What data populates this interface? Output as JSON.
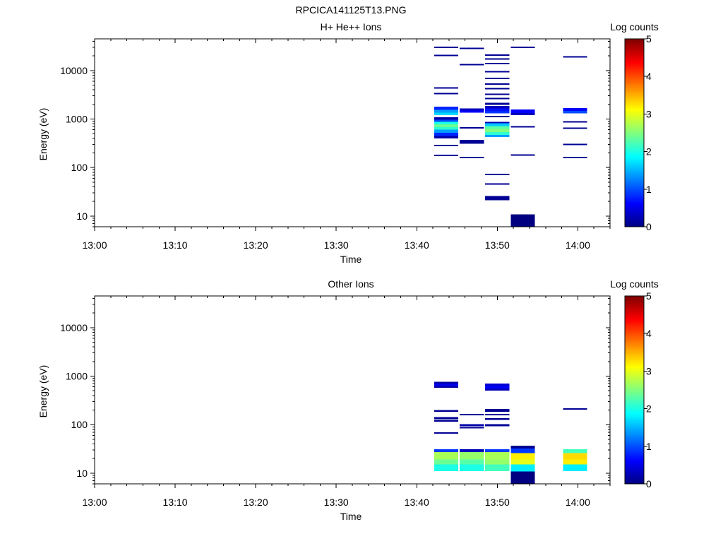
{
  "figure_title": "RPCICA141125T13.PNG",
  "chart_data": [
    {
      "type": "heatmap",
      "title": "H+ He++ Ions",
      "xlabel": "Time",
      "ylabel": "Energy (eV)",
      "x_ticks": [
        "13:00",
        "13:10",
        "13:20",
        "13:30",
        "13:40",
        "13:50",
        "14:00"
      ],
      "x_range_minutes_after_1300": [
        0,
        64
      ],
      "y_scale": "log",
      "y_ticks": [
        "10",
        "100",
        "1000",
        "10000"
      ],
      "y_range": [
        6,
        45000
      ],
      "colorbar": {
        "label": "Log counts",
        "range": [
          0,
          5
        ],
        "ticks": [
          "0",
          "1",
          "2",
          "3",
          "4",
          "5"
        ]
      },
      "time_bins": [
        {
          "start": "13:42:10",
          "end": "13:45:10",
          "cells": [
            {
              "e_lo": 175,
              "e_hi": 182,
              "log_counts": 0.1
            },
            {
              "e_lo": 280,
              "e_hi": 292,
              "log_counts": 0.1
            },
            {
              "e_lo": 400,
              "e_hi": 445,
              "log_counts": 0.2
            },
            {
              "e_lo": 445,
              "e_hi": 520,
              "log_counts": 0.8
            },
            {
              "e_lo": 520,
              "e_hi": 600,
              "log_counts": 1.4
            },
            {
              "e_lo": 600,
              "e_hi": 680,
              "log_counts": 2.1
            },
            {
              "e_lo": 680,
              "e_hi": 780,
              "log_counts": 2.4
            },
            {
              "e_lo": 780,
              "e_hi": 880,
              "log_counts": 2.0
            },
            {
              "e_lo": 880,
              "e_hi": 960,
              "log_counts": 1.0
            },
            {
              "e_lo": 960,
              "e_hi": 1080,
              "log_counts": 0.2
            },
            {
              "e_lo": 1200,
              "e_hi": 1350,
              "log_counts": 1.7
            },
            {
              "e_lo": 1350,
              "e_hi": 1550,
              "log_counts": 1.4
            },
            {
              "e_lo": 1550,
              "e_hi": 1800,
              "log_counts": 0.8
            },
            {
              "e_lo": 3250,
              "e_hi": 3400,
              "log_counts": 0.1
            },
            {
              "e_lo": 4250,
              "e_hi": 4450,
              "log_counts": 0.1
            },
            {
              "e_lo": 20000,
              "e_hi": 21200,
              "log_counts": 0.1
            },
            {
              "e_lo": 29500,
              "e_hi": 31000,
              "log_counts": 0.1
            }
          ]
        },
        {
          "start": "13:45:20",
          "end": "13:48:20",
          "cells": [
            {
              "e_lo": 158,
              "e_hi": 166,
              "log_counts": 0.1
            },
            {
              "e_lo": 310,
              "e_hi": 370,
              "log_counts": 0.1
            },
            {
              "e_lo": 640,
              "e_hi": 670,
              "log_counts": 0.1
            },
            {
              "e_lo": 1350,
              "e_hi": 1500,
              "log_counts": 0.6
            },
            {
              "e_lo": 1500,
              "e_hi": 1650,
              "log_counts": 0.3
            },
            {
              "e_lo": 12800,
              "e_hi": 13600,
              "log_counts": 0.1
            },
            {
              "e_lo": 28000,
              "e_hi": 29500,
              "log_counts": 0.1
            }
          ]
        },
        {
          "start": "13:48:30",
          "end": "13:51:30",
          "cells": [
            {
              "e_lo": 21,
              "e_hi": 26,
              "log_counts": 0.1
            },
            {
              "e_lo": 44,
              "e_hi": 47,
              "log_counts": 0.1
            },
            {
              "e_lo": 70,
              "e_hi": 73,
              "log_counts": 0.1
            },
            {
              "e_lo": 425,
              "e_hi": 470,
              "log_counts": 1.4
            },
            {
              "e_lo": 470,
              "e_hi": 540,
              "log_counts": 2.1
            },
            {
              "e_lo": 540,
              "e_hi": 620,
              "log_counts": 2.5
            },
            {
              "e_lo": 620,
              "e_hi": 720,
              "log_counts": 2.3
            },
            {
              "e_lo": 720,
              "e_hi": 820,
              "log_counts": 1.6
            },
            {
              "e_lo": 820,
              "e_hi": 880,
              "log_counts": 0.3
            },
            {
              "e_lo": 1100,
              "e_hi": 1160,
              "log_counts": 0.1
            },
            {
              "e_lo": 1300,
              "e_hi": 1450,
              "log_counts": 0.9
            },
            {
              "e_lo": 1450,
              "e_hi": 1650,
              "log_counts": 0.7
            },
            {
              "e_lo": 1650,
              "e_hi": 1850,
              "log_counts": 0.3
            },
            {
              "e_lo": 1950,
              "e_hi": 2150,
              "log_counts": 0.1
            },
            {
              "e_lo": 2550,
              "e_hi": 2700,
              "log_counts": 0.1
            },
            {
              "e_lo": 3150,
              "e_hi": 3300,
              "log_counts": 0.1
            },
            {
              "e_lo": 4100,
              "e_hi": 4300,
              "log_counts": 0.1
            },
            {
              "e_lo": 5150,
              "e_hi": 5400,
              "log_counts": 0.1
            },
            {
              "e_lo": 6700,
              "e_hi": 7000,
              "log_counts": 0.1
            },
            {
              "e_lo": 9200,
              "e_hi": 9700,
              "log_counts": 0.1
            },
            {
              "e_lo": 13500,
              "e_hi": 14500,
              "log_counts": 0.1
            },
            {
              "e_lo": 16800,
              "e_hi": 17800,
              "log_counts": 0.1
            },
            {
              "e_lo": 20000,
              "e_hi": 21500,
              "log_counts": 0.1
            }
          ]
        },
        {
          "start": "13:51:40",
          "end": "13:54:40",
          "cells": [
            {
              "e_lo": 6,
              "e_hi": 10.8,
              "log_counts": 0.0
            },
            {
              "e_lo": 176,
              "e_hi": 183,
              "log_counts": 0.1
            },
            {
              "e_lo": 680,
              "e_hi": 710,
              "log_counts": 0.1
            },
            {
              "e_lo": 1200,
              "e_hi": 1330,
              "log_counts": 0.3
            },
            {
              "e_lo": 1330,
              "e_hi": 1560,
              "log_counts": 0.6
            },
            {
              "e_lo": 29500,
              "e_hi": 31000,
              "log_counts": 0.1
            }
          ]
        },
        {
          "start": "13:58:10",
          "end": "14:01:10",
          "cells": [
            {
              "e_lo": 158,
              "e_hi": 166,
              "log_counts": 0.1
            },
            {
              "e_lo": 292,
              "e_hi": 305,
              "log_counts": 0.1
            },
            {
              "e_lo": 630,
              "e_hi": 660,
              "log_counts": 0.1
            },
            {
              "e_lo": 850,
              "e_hi": 890,
              "log_counts": 0.1
            },
            {
              "e_lo": 1300,
              "e_hi": 1480,
              "log_counts": 1.0
            },
            {
              "e_lo": 1480,
              "e_hi": 1680,
              "log_counts": 0.6
            },
            {
              "e_lo": 18500,
              "e_hi": 19500,
              "log_counts": 0.1
            }
          ]
        }
      ]
    },
    {
      "type": "heatmap",
      "title": "Other Ions",
      "xlabel": "Time",
      "ylabel": "Energy (eV)",
      "x_ticks": [
        "13:00",
        "13:10",
        "13:20",
        "13:30",
        "13:40",
        "13:50",
        "14:00"
      ],
      "x_range_minutes_after_1300": [
        0,
        64
      ],
      "y_scale": "log",
      "y_ticks": [
        "10",
        "100",
        "1000",
        "10000"
      ],
      "y_range": [
        6,
        45000
      ],
      "colorbar": {
        "label": "Log counts",
        "range": [
          0,
          5
        ],
        "ticks": [
          "0",
          "1",
          "2",
          "3",
          "4",
          "5"
        ]
      },
      "time_bins": [
        {
          "start": "13:42:10",
          "end": "13:45:10",
          "cells": [
            {
              "e_lo": 11,
              "e_hi": 15,
              "log_counts": 2.0
            },
            {
              "e_lo": 15,
              "e_hi": 19,
              "log_counts": 2.4
            },
            {
              "e_lo": 19,
              "e_hi": 27,
              "log_counts": 2.7
            },
            {
              "e_lo": 27,
              "e_hi": 31,
              "log_counts": 0.9
            },
            {
              "e_lo": 66,
              "e_hi": 69,
              "log_counts": 0.1
            },
            {
              "e_lo": 115,
              "e_hi": 125,
              "log_counts": 0.1
            },
            {
              "e_lo": 130,
              "e_hi": 142,
              "log_counts": 0.1
            },
            {
              "e_lo": 185,
              "e_hi": 200,
              "log_counts": 0.1
            },
            {
              "e_lo": 570,
              "e_hi": 630,
              "log_counts": 0.2
            },
            {
              "e_lo": 630,
              "e_hi": 700,
              "log_counts": 0.5
            },
            {
              "e_lo": 700,
              "e_hi": 760,
              "log_counts": 0.2
            }
          ]
        },
        {
          "start": "13:45:20",
          "end": "13:48:20",
          "cells": [
            {
              "e_lo": 11,
              "e_hi": 15,
              "log_counts": 2.0
            },
            {
              "e_lo": 15,
              "e_hi": 19,
              "log_counts": 2.3
            },
            {
              "e_lo": 19,
              "e_hi": 27,
              "log_counts": 2.6
            },
            {
              "e_lo": 27,
              "e_hi": 31,
              "log_counts": 0.3
            },
            {
              "e_lo": 84,
              "e_hi": 88,
              "log_counts": 0.1
            },
            {
              "e_lo": 92,
              "e_hi": 102,
              "log_counts": 0.2
            },
            {
              "e_lo": 157,
              "e_hi": 163,
              "log_counts": 0.1
            }
          ]
        },
        {
          "start": "13:48:30",
          "end": "13:51:30",
          "cells": [
            {
              "e_lo": 11,
              "e_hi": 15,
              "log_counts": 2.2
            },
            {
              "e_lo": 15,
              "e_hi": 19,
              "log_counts": 2.6
            },
            {
              "e_lo": 19,
              "e_hi": 27,
              "log_counts": 2.7
            },
            {
              "e_lo": 27,
              "e_hi": 31,
              "log_counts": 0.9
            },
            {
              "e_lo": 92,
              "e_hi": 102,
              "log_counts": 0.1
            },
            {
              "e_lo": 125,
              "e_hi": 135,
              "log_counts": 0.1
            },
            {
              "e_lo": 158,
              "e_hi": 165,
              "log_counts": 0.1
            },
            {
              "e_lo": 185,
              "e_hi": 210,
              "log_counts": 0.1
            },
            {
              "e_lo": 500,
              "e_hi": 560,
              "log_counts": 0.3
            },
            {
              "e_lo": 560,
              "e_hi": 630,
              "log_counts": 0.6
            },
            {
              "e_lo": 630,
              "e_hi": 700,
              "log_counts": 0.4
            }
          ]
        },
        {
          "start": "13:51:40",
          "end": "13:54:40",
          "cells": [
            {
              "e_lo": 6,
              "e_hi": 10.8,
              "log_counts": 0.0
            },
            {
              "e_lo": 10.8,
              "e_hi": 15,
              "log_counts": 1.8
            },
            {
              "e_lo": 15,
              "e_hi": 19,
              "log_counts": 3.0
            },
            {
              "e_lo": 19,
              "e_hi": 26,
              "log_counts": 3.2
            },
            {
              "e_lo": 26,
              "e_hi": 32,
              "log_counts": 0.9
            },
            {
              "e_lo": 32,
              "e_hi": 37,
              "log_counts": 0.1
            }
          ]
        },
        {
          "start": "13:58:10",
          "end": "14:01:10",
          "cells": [
            {
              "e_lo": 11,
              "e_hi": 15,
              "log_counts": 1.8
            },
            {
              "e_lo": 15,
              "e_hi": 19,
              "log_counts": 3.2
            },
            {
              "e_lo": 19,
              "e_hi": 26,
              "log_counts": 3.3
            },
            {
              "e_lo": 26,
              "e_hi": 31,
              "log_counts": 2.2
            },
            {
              "e_lo": 205,
              "e_hi": 215,
              "log_counts": 0.1
            }
          ]
        }
      ]
    }
  ]
}
